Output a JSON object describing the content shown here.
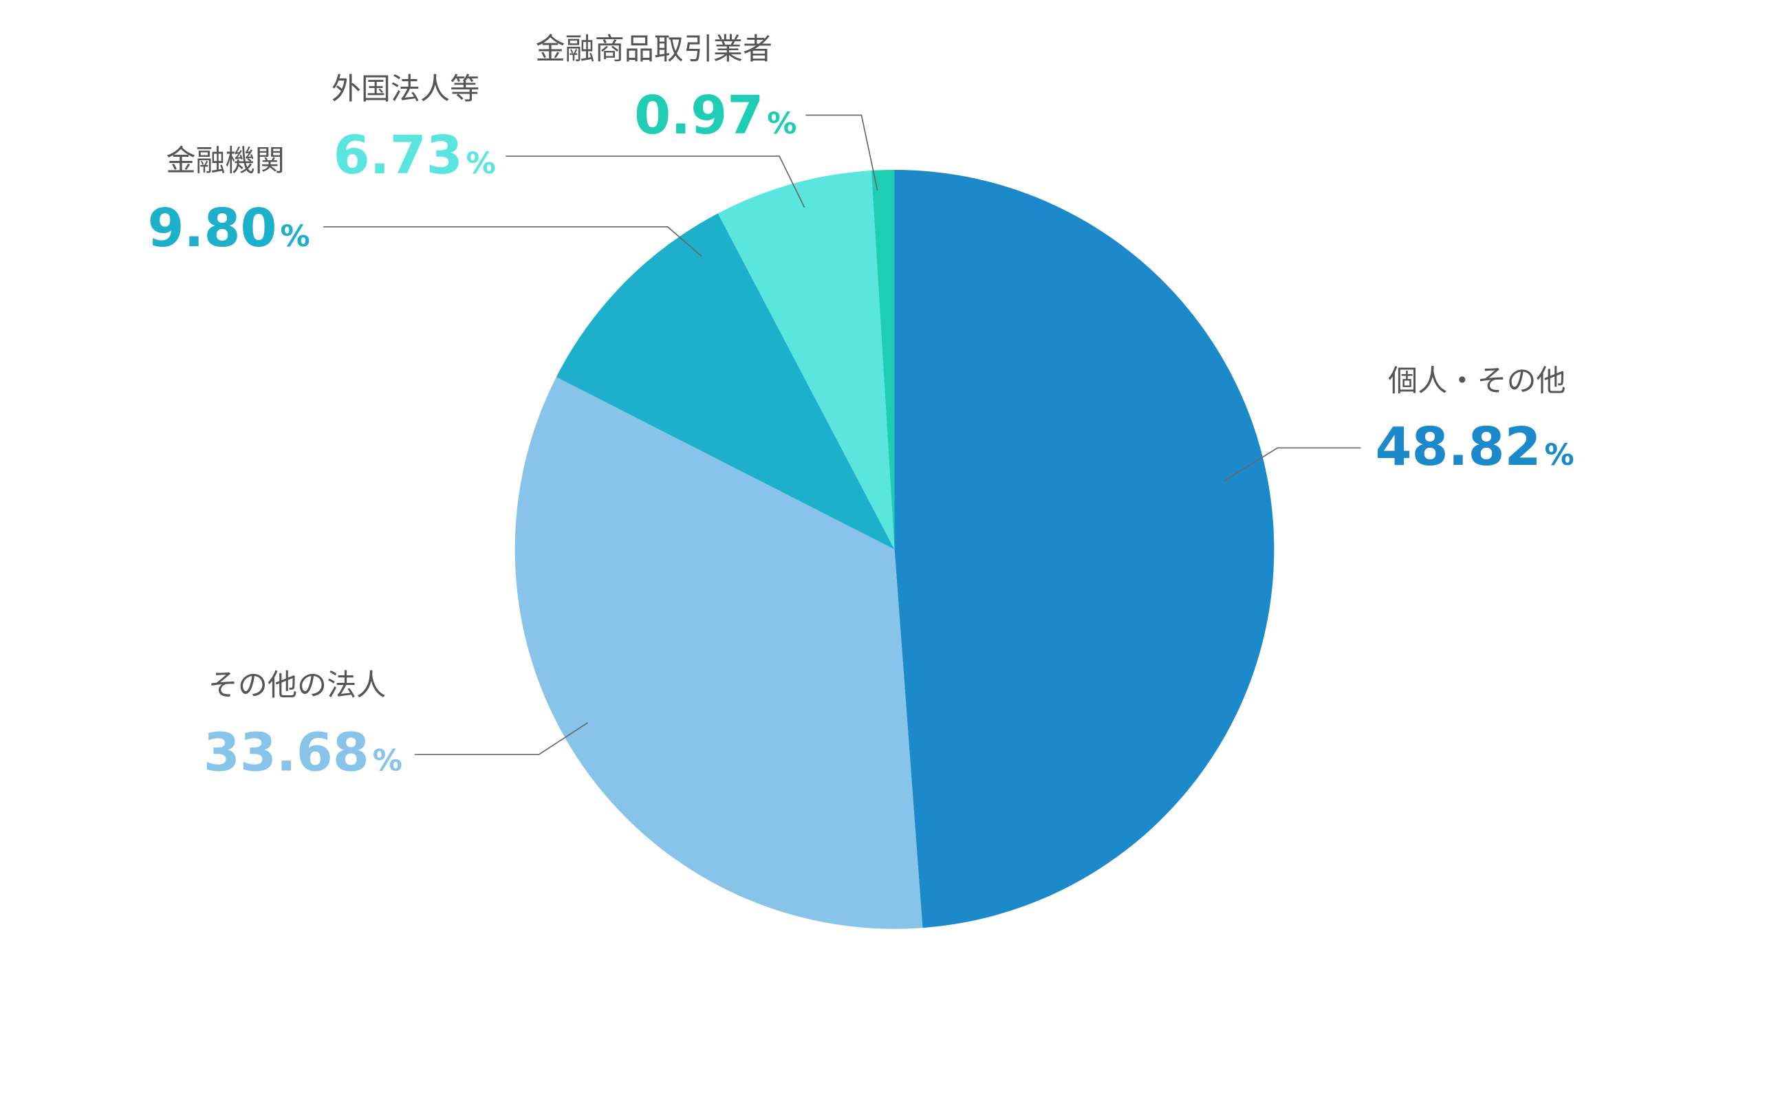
{
  "chart_data": {
    "type": "pie",
    "categories": [
      "個人・その他",
      "その他の法人",
      "金融機関",
      "外国法人等",
      "金融商品取引業者"
    ],
    "values": [
      48.82,
      33.68,
      9.8,
      6.73,
      0.97
    ],
    "value_labels": [
      "48.82%",
      "33.68%",
      "9.80%",
      "6.73%",
      "0.97%"
    ],
    "colors": [
      "#1c89cb",
      "#88c4ea",
      "#1db0cb",
      "#5ae5df",
      "#1fcdb5"
    ]
  }
}
